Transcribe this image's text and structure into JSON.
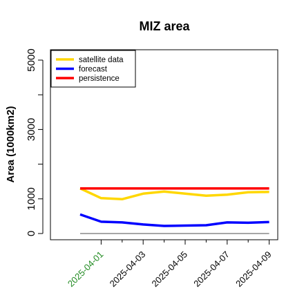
{
  "chart_data": {
    "type": "line",
    "title": "MIZ area",
    "xlabel": "",
    "ylabel": "Area (1000km2)",
    "ylim": [
      0,
      5300
    ],
    "y_ticks": [
      {
        "value": 0,
        "label": "0"
      },
      {
        "value": 1000,
        "label": "1000"
      },
      {
        "value": 3000,
        "label": "3000"
      },
      {
        "value": 5000,
        "label": "5000"
      }
    ],
    "y_minor_ticks": [
      2000,
      4000
    ],
    "x": [
      "2025-03-31",
      "2025-04-01",
      "2025-04-02",
      "2025-04-03",
      "2025-04-04",
      "2025-04-05",
      "2025-04-06",
      "2025-04-07",
      "2025-04-08",
      "2025-04-09"
    ],
    "x_ticks": [
      {
        "label": "2025-04-01",
        "color": "#228B22"
      },
      {
        "label": "2025-04-03",
        "color": "#000000"
      },
      {
        "label": "2025-04-05",
        "color": "#000000"
      },
      {
        "label": "2025-04-07",
        "color": "#000000"
      },
      {
        "label": "2025-04-09",
        "color": "#000000"
      }
    ],
    "series": [
      {
        "name": "satellite data",
        "color": "#FFD700",
        "values": [
          1300,
          1020,
          990,
          1150,
          1210,
          1150,
          1090,
          1120,
          1190,
          1200
        ]
      },
      {
        "name": "forecast",
        "color": "#0000FF",
        "values": [
          550,
          340,
          320,
          260,
          220,
          230,
          240,
          320,
          310,
          330
        ]
      },
      {
        "name": "persistence",
        "color": "#FF0000",
        "values": [
          1300,
          1300,
          1300,
          1300,
          1300,
          1300,
          1300,
          1300,
          1300,
          1300
        ]
      },
      {
        "name": "",
        "color": "#888888",
        "values": [
          0,
          0,
          0,
          0,
          0,
          0,
          0,
          0,
          0,
          0
        ]
      }
    ],
    "legend_position": "top-left",
    "grid": false
  }
}
